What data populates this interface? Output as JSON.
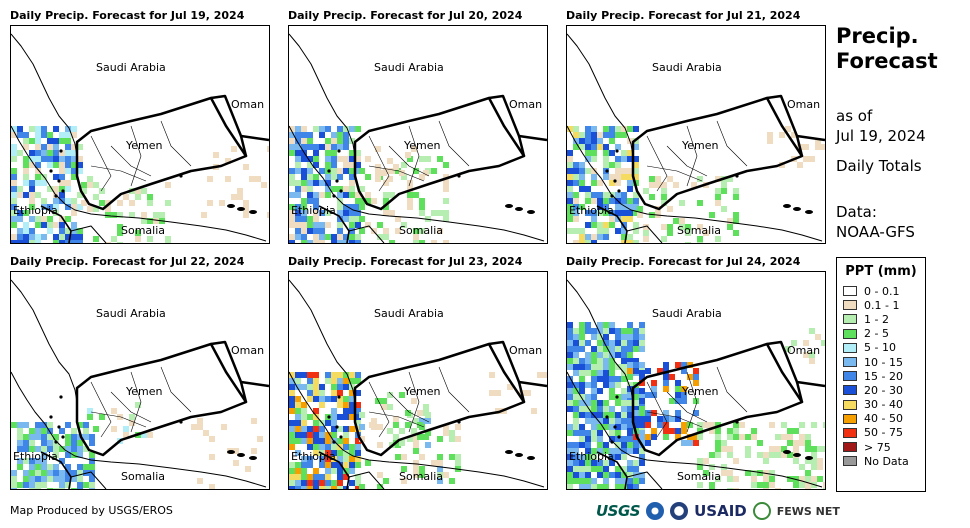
{
  "panels": [
    {
      "title": "Daily Precip. Forecast for Jul 19, 2024"
    },
    {
      "title": "Daily Precip. Forecast for Jul 20, 2024"
    },
    {
      "title": "Daily Precip. Forecast for Jul 21, 2024"
    },
    {
      "title": "Daily Precip. Forecast for Jul 22, 2024"
    },
    {
      "title": "Daily Precip. Forecast for Jul 23, 2024"
    },
    {
      "title": "Daily Precip. Forecast for Jul 24, 2024"
    }
  ],
  "labels": {
    "saudi": "Saudi Arabia",
    "oman": "Oman",
    "yemen": "Yemen",
    "ethiopia": "Ethiopia",
    "somalia": "Somalia"
  },
  "side": {
    "title_line1": "Precip.",
    "title_line2": "Forecast",
    "asof": "as of",
    "date": "Jul 19, 2024",
    "totals": "Daily Totals",
    "data_label": "Data:",
    "data_source": "NOAA-GFS"
  },
  "legend": {
    "title": "PPT (mm)",
    "items": [
      {
        "label": "0 - 0.1",
        "color": "#ffffff"
      },
      {
        "label": "0.1 - 1",
        "color": "#f0dcc0"
      },
      {
        "label": "1 - 2",
        "color": "#b5eeb0"
      },
      {
        "label": "2 - 5",
        "color": "#5fe05c"
      },
      {
        "label": "5 - 10",
        "color": "#b2eef8"
      },
      {
        "label": "10 - 15",
        "color": "#7ab8f0"
      },
      {
        "label": "15 - 20",
        "color": "#3f86e8"
      },
      {
        "label": "20 - 30",
        "color": "#1a50d8"
      },
      {
        "label": "30 - 40",
        "color": "#f5dc60"
      },
      {
        "label": "40 - 50",
        "color": "#f5a000"
      },
      {
        "label": "50 - 75",
        "color": "#f03010"
      },
      {
        "label": "> 75",
        "color": "#a01818"
      },
      {
        "label": "No Data",
        "color": "#999999"
      }
    ]
  },
  "footer": "Map Produced by USGS/EROS",
  "logos": {
    "usgs": "USGS",
    "usaid": "USAID",
    "fews": "FEWS NET"
  }
}
